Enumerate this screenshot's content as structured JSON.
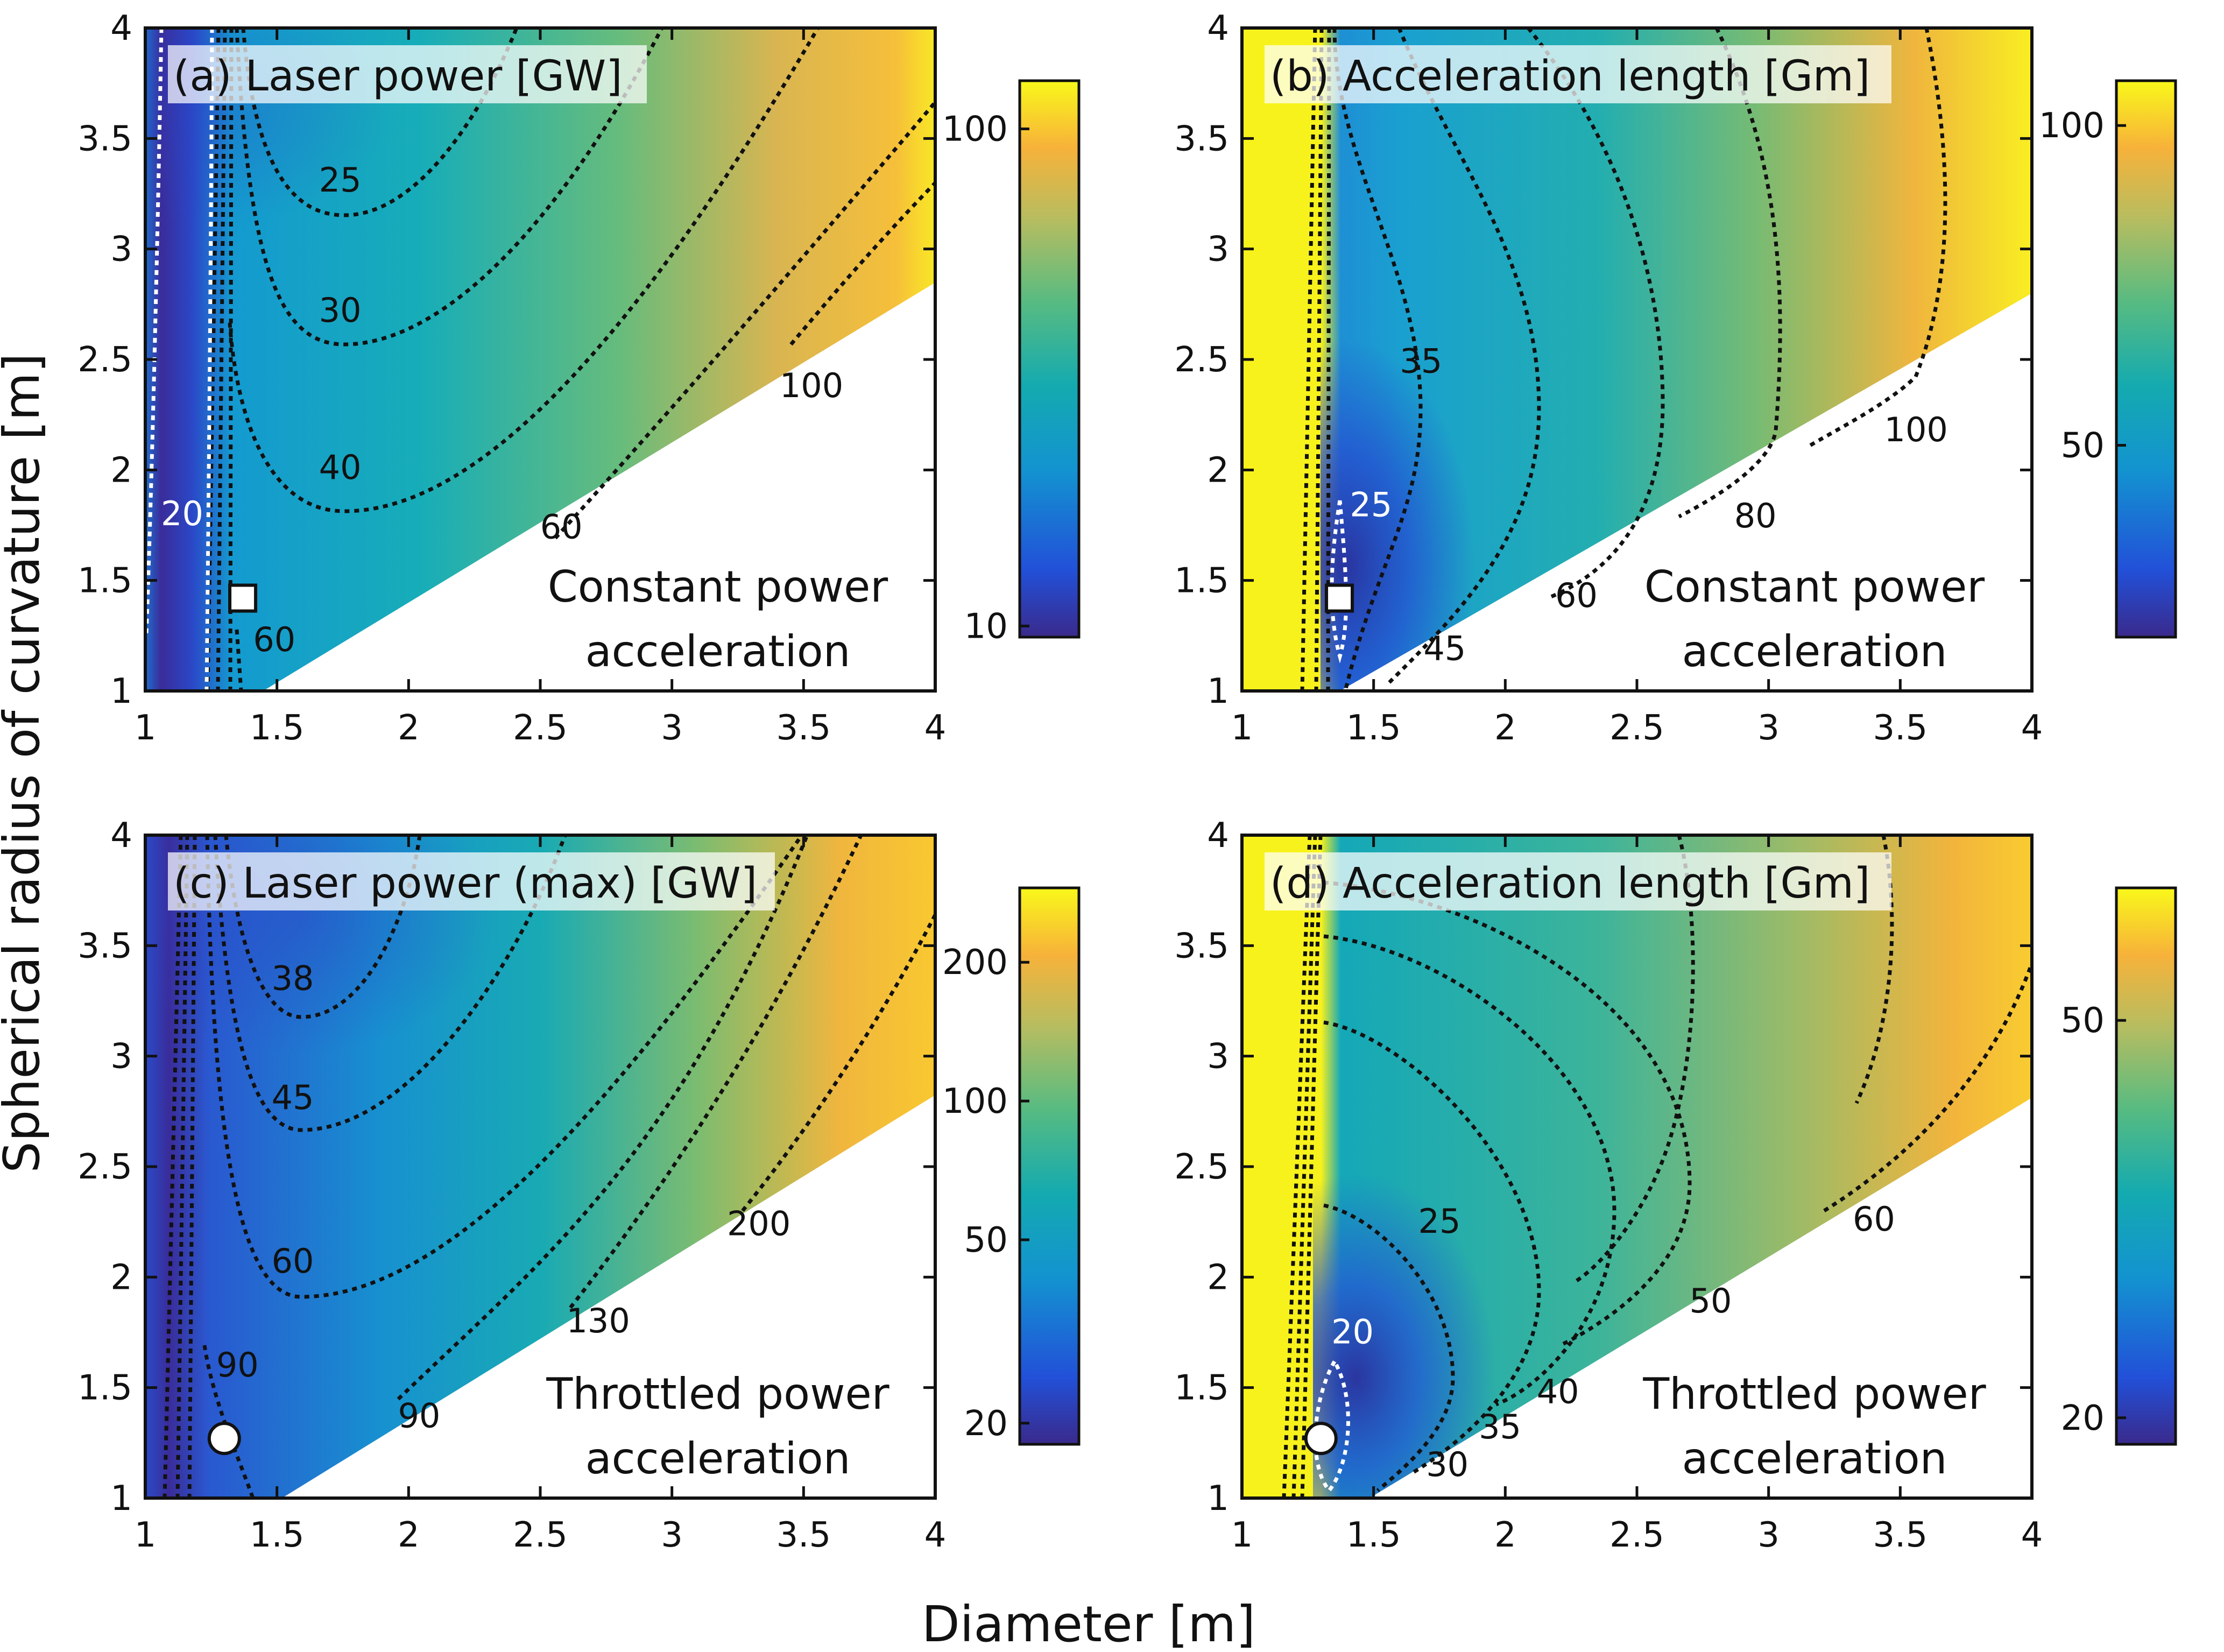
{
  "figure": {
    "xlabel": "Diameter [m]",
    "ylabel": "Spherical radius of curvature [m]"
  },
  "chart_data": [
    {
      "type": "heatmap",
      "id": "a",
      "title": "(a) Laser power [GW]",
      "note_lines": [
        "Constant power",
        "acceleration"
      ],
      "xlim": [
        1,
        4
      ],
      "ylim": [
        1,
        4
      ],
      "xticks": [
        "1",
        "1.5",
        "2",
        "2.5",
        "3",
        "3.5",
        "4"
      ],
      "yticks": [
        "1",
        "1.5",
        "2",
        "2.5",
        "3",
        "3.5",
        "4"
      ],
      "colorbar": {
        "scale": "log",
        "range": [
          9.5,
          125
        ],
        "ticks": [
          {
            "value": 10,
            "label": "10"
          },
          {
            "value": 100,
            "label": "100"
          }
        ]
      },
      "contour_levels": [
        20,
        25,
        30,
        40,
        60,
        100
      ],
      "contour_labels": [
        {
          "text": "20",
          "x": 1.14,
          "y": 1.75,
          "color": "#ffffff"
        },
        {
          "text": "25",
          "x": 1.74,
          "y": 3.26,
          "color": "#111111"
        },
        {
          "text": "30",
          "x": 1.74,
          "y": 2.67,
          "color": "#111111"
        },
        {
          "text": "40",
          "x": 1.74,
          "y": 1.96,
          "color": "#111111"
        },
        {
          "text": "60",
          "x": 2.58,
          "y": 1.69,
          "color": "#111111"
        },
        {
          "text": "60",
          "x": 1.49,
          "y": 1.18,
          "color": "#111111"
        },
        {
          "text": "100",
          "x": 3.53,
          "y": 2.33,
          "color": "#111111"
        }
      ],
      "marker": {
        "shape": "square",
        "x": 1.37,
        "y": 1.42
      }
    },
    {
      "type": "heatmap",
      "id": "b",
      "title": "(b) Acceleration length [Gm]",
      "note_lines": [
        "Constant power",
        "acceleration"
      ],
      "xlim": [
        1,
        4
      ],
      "ylim": [
        1,
        4
      ],
      "xticks": [
        "1",
        "1.5",
        "2",
        "2.5",
        "3",
        "3.5",
        "4"
      ],
      "yticks": [
        "1",
        "1.5",
        "2",
        "2.5",
        "3",
        "3.5",
        "4"
      ],
      "colorbar": {
        "scale": "linear",
        "range": [
          20,
          107
        ],
        "ticks": [
          {
            "value": 50,
            "label": "50"
          },
          {
            "value": 100,
            "label": "100"
          }
        ]
      },
      "contour_levels": [
        25,
        35,
        45,
        60,
        80,
        100
      ],
      "contour_labels": [
        {
          "text": "25",
          "x": 1.49,
          "y": 1.79,
          "color": "#ffffff"
        },
        {
          "text": "35",
          "x": 1.68,
          "y": 2.44,
          "color": "#111111"
        },
        {
          "text": "45",
          "x": 1.77,
          "y": 1.14,
          "color": "#111111"
        },
        {
          "text": "60",
          "x": 2.27,
          "y": 1.38,
          "color": "#111111"
        },
        {
          "text": "80",
          "x": 2.95,
          "y": 1.74,
          "color": "#111111"
        },
        {
          "text": "100",
          "x": 3.56,
          "y": 2.13,
          "color": "#111111"
        }
      ],
      "marker": {
        "shape": "square",
        "x": 1.37,
        "y": 1.42
      }
    },
    {
      "type": "heatmap",
      "id": "c",
      "title": "(c) Laser power (max) [GW]",
      "note_lines": [
        "Throttled power",
        "acceleration"
      ],
      "xlim": [
        1,
        4
      ],
      "ylim": [
        1,
        4
      ],
      "xticks": [
        "1",
        "1.5",
        "2",
        "2.5",
        "3",
        "3.5",
        "4"
      ],
      "yticks": [
        "1",
        "1.5",
        "2",
        "2.5",
        "3",
        "3.5",
        "4"
      ],
      "colorbar": {
        "scale": "log",
        "range": [
          18,
          290
        ],
        "ticks": [
          {
            "value": 20,
            "label": "20"
          },
          {
            "value": 50,
            "label": "50"
          },
          {
            "value": 100,
            "label": "100"
          },
          {
            "value": 200,
            "label": "200"
          }
        ]
      },
      "contour_levels": [
        38,
        45,
        60,
        90,
        130,
        200
      ],
      "contour_labels": [
        {
          "text": "38",
          "x": 1.56,
          "y": 3.3,
          "color": "#111111"
        },
        {
          "text": "45",
          "x": 1.56,
          "y": 2.76,
          "color": "#111111"
        },
        {
          "text": "60",
          "x": 1.56,
          "y": 2.02,
          "color": "#111111"
        },
        {
          "text": "90",
          "x": 1.35,
          "y": 1.55,
          "color": "#111111"
        },
        {
          "text": "90",
          "x": 2.04,
          "y": 1.32,
          "color": "#111111"
        },
        {
          "text": "130",
          "x": 2.72,
          "y": 1.75,
          "color": "#111111"
        },
        {
          "text": "200",
          "x": 3.33,
          "y": 2.19,
          "color": "#111111"
        }
      ],
      "marker": {
        "shape": "circle",
        "x": 1.3,
        "y": 1.27
      }
    },
    {
      "type": "heatmap",
      "id": "d",
      "title": "(d) Acceleration length [Gm]",
      "note_lines": [
        "Throttled power",
        "acceleration"
      ],
      "xlim": [
        1,
        4
      ],
      "ylim": [
        1,
        4
      ],
      "xticks": [
        "1",
        "1.5",
        "2",
        "2.5",
        "3",
        "3.5",
        "4"
      ],
      "yticks": [
        "1",
        "1.5",
        "2",
        "2.5",
        "3",
        "3.5",
        "4"
      ],
      "colorbar": {
        "scale": "linear",
        "range": [
          18,
          60
        ],
        "ticks": [
          {
            "value": 20,
            "label": "20"
          },
          {
            "value": 50,
            "label": "50"
          }
        ]
      },
      "contour_levels": [
        20,
        25,
        30,
        35,
        40,
        50,
        60
      ],
      "contour_labels": [
        {
          "text": "20",
          "x": 1.42,
          "y": 1.7,
          "color": "#ffffff"
        },
        {
          "text": "25",
          "x": 1.75,
          "y": 2.2,
          "color": "#111111"
        },
        {
          "text": "30",
          "x": 1.78,
          "y": 1.1,
          "color": "#111111"
        },
        {
          "text": "35",
          "x": 1.98,
          "y": 1.27,
          "color": "#111111"
        },
        {
          "text": "40",
          "x": 2.2,
          "y": 1.43,
          "color": "#111111"
        },
        {
          "text": "50",
          "x": 2.78,
          "y": 1.84,
          "color": "#111111"
        },
        {
          "text": "60",
          "x": 3.4,
          "y": 2.21,
          "color": "#111111"
        }
      ],
      "marker": {
        "shape": "circle",
        "x": 1.3,
        "y": 1.27
      }
    }
  ]
}
